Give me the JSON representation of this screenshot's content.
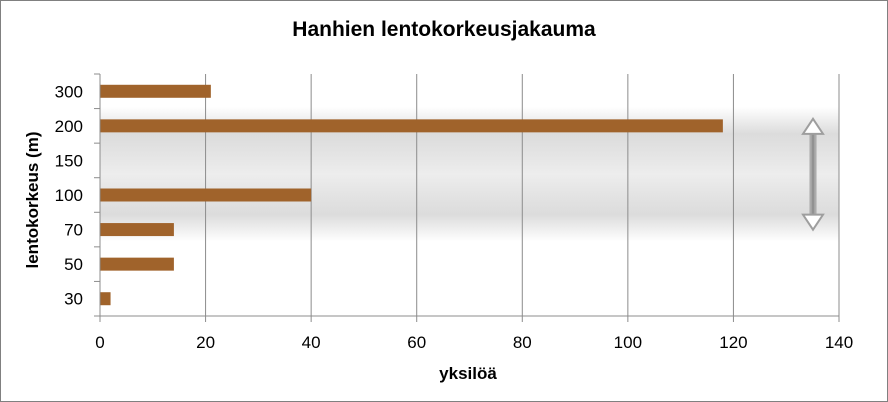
{
  "chart_data": {
    "type": "bar",
    "orientation": "horizontal",
    "title": "Hanhien lentokorkeusjakauma",
    "xlabel": "yksilöä",
    "ylabel": "lentokorkeus (m)",
    "categories": [
      "300",
      "200",
      "150",
      "100",
      "70",
      "50",
      "30"
    ],
    "values": [
      21,
      118,
      0,
      40,
      14,
      14,
      2
    ],
    "xlim": [
      0,
      140
    ],
    "xticks": [
      "0",
      "20",
      "40",
      "60",
      "80",
      "100",
      "120",
      "140"
    ],
    "grid": "vertical",
    "legend": "none",
    "bar_color": "#A0632B",
    "highlight_band": {
      "from_category": "200",
      "to_category": "70"
    }
  }
}
